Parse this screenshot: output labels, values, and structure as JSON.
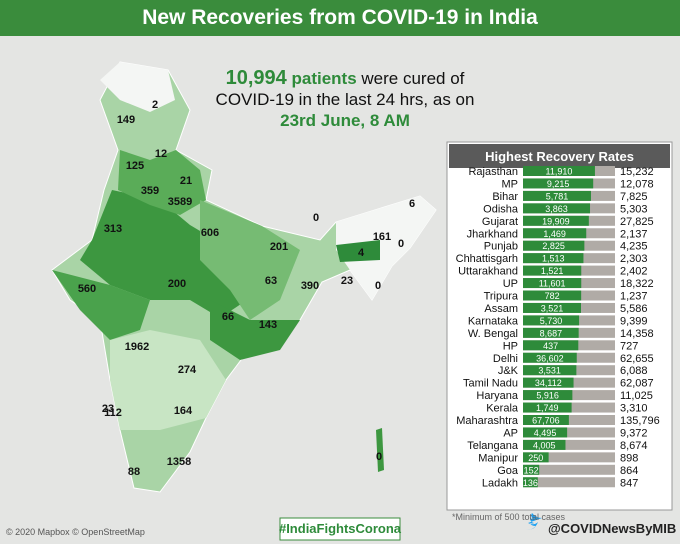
{
  "header": {
    "title": "New Recoveries from COVID-19 in India"
  },
  "headline": {
    "count": "10,994",
    "count_unit": "patients",
    "text": "were cured of COVID-19 in the last 24 hrs, as on",
    "date": "23rd June, 8 AM"
  },
  "map": {
    "labels": [
      "2",
      "149",
      "12",
      "125",
      "21",
      "359",
      "3589",
      "313",
      "606",
      "201",
      "200",
      "560",
      "63",
      "390",
      "66",
      "143",
      "1962",
      "274",
      "23",
      "112",
      "164",
      "88",
      "1358",
      "0",
      "6",
      "161",
      "4",
      "0",
      "23",
      "0",
      "0"
    ],
    "credit": "© 2020 Mapbox © OpenStreetMap"
  },
  "chart_data": {
    "type": "bar",
    "title": "Highest Recovery Rates",
    "categories": [
      "Rajasthan",
      "MP",
      "Bihar",
      "Odisha",
      "Gujarat",
      "Jharkhand",
      "Punjab",
      "Chhattisgarh",
      "Uttarakhand",
      "UP",
      "Tripura",
      "Assam",
      "Karnataka",
      "W. Bengal",
      "HP",
      "Delhi",
      "J&K",
      "Tamil Nadu",
      "Haryana",
      "Kerala",
      "Maharashtra",
      "AP",
      "Telangana",
      "Manipur",
      "Goa",
      "Ladakh"
    ],
    "values": [
      11910,
      9215,
      5781,
      3863,
      19909,
      1469,
      2825,
      1513,
      1521,
      11601,
      782,
      3521,
      5730,
      8687,
      437,
      36602,
      3531,
      34112,
      5916,
      1749,
      67706,
      4495,
      4005,
      250,
      152,
      136
    ],
    "value_labels": [
      "11,910",
      "9,215",
      "5,781",
      "3,863",
      "19,909",
      "1,469",
      "2,825",
      "1,513",
      "1,521",
      "11,601",
      "782",
      "3,521",
      "5,730",
      "8,687",
      "437",
      "36,602",
      "3,531",
      "34,112",
      "5,916",
      "1,749",
      "67,706",
      "4,495",
      "4,005",
      "250",
      "152",
      "136"
    ],
    "totals": [
      15232,
      12078,
      7825,
      5303,
      27825,
      2137,
      4235,
      2303,
      2402,
      18322,
      1237,
      5586,
      9399,
      14358,
      727,
      62655,
      6088,
      62087,
      11025,
      3310,
      135796,
      9372,
      8674,
      898,
      864,
      847
    ],
    "total_labels": [
      "15,232",
      "12,078",
      "7,825",
      "5,303",
      "27,825",
      "2,137",
      "4,235",
      "2,303",
      "2,402",
      "18,322",
      "1,237",
      "5,586",
      "9,399",
      "14,358",
      "727",
      "62,655",
      "6,088",
      "62,087",
      "11,025",
      "3,310",
      "135,796",
      "9,372",
      "8,674",
      "898",
      "864",
      "847"
    ],
    "color": "#2e8b3a",
    "total_color": "#b0aba6",
    "note": "*Minimum of 500 total cases"
  },
  "footer": {
    "hashtag": "#IndiaFightsCorona",
    "handle": "@COVIDNewsByMIB"
  }
}
